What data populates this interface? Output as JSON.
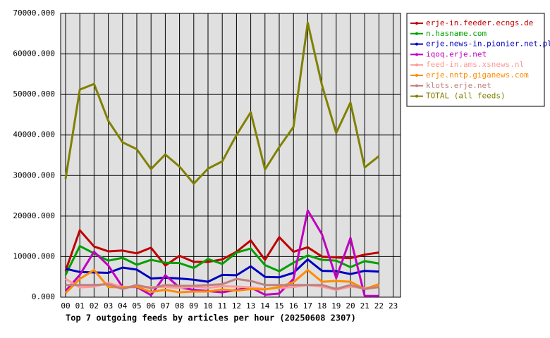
{
  "chart_data": {
    "type": "line",
    "title": "Top 7 outgoing feeds by articles per hour (20250608 2307)",
    "categories": [
      "00",
      "01",
      "02",
      "03",
      "04",
      "05",
      "06",
      "07",
      "08",
      "09",
      "10",
      "11",
      "12",
      "13",
      "14",
      "15",
      "16",
      "17",
      "18",
      "19",
      "20",
      "21",
      "22",
      "23"
    ],
    "ylim": [
      0,
      70000
    ],
    "yticks": [
      {
        "value": 0,
        "label": "0.000"
      },
      {
        "value": 10000,
        "label": "10000.000"
      },
      {
        "value": 20000,
        "label": "20000.000"
      },
      {
        "value": 30000,
        "label": "30000.000"
      },
      {
        "value": 40000,
        "label": "40000.000"
      },
      {
        "value": 50000,
        "label": "50000.000"
      },
      {
        "value": 60000,
        "label": "60000.000"
      },
      {
        "value": 70000,
        "label": "70000.000"
      }
    ],
    "grid": true,
    "legend": "right",
    "series": [
      {
        "name": "erje-in.feeder.ecngs.de",
        "color": "#c00000",
        "values": [
          6500,
          16500,
          12500,
          11300,
          11500,
          10800,
          12200,
          7800,
          10200,
          8700,
          8700,
          9300,
          11200,
          14000,
          9200,
          14800,
          11200,
          12300,
          10000,
          9800,
          9600,
          10500,
          11000,
          null
        ]
      },
      {
        "name": "n.hasname.com",
        "color": "#00a000",
        "values": [
          5500,
          12600,
          10800,
          9000,
          9700,
          8000,
          9200,
          8500,
          8400,
          7200,
          9400,
          8200,
          11000,
          12000,
          7900,
          6400,
          8500,
          10300,
          9200,
          9000,
          7400,
          8900,
          8300,
          null
        ]
      },
      {
        "name": "erje.news-in.pionier.net.pl",
        "color": "#0000c0",
        "values": [
          7000,
          6200,
          6100,
          6000,
          7300,
          6800,
          4600,
          4800,
          4600,
          4300,
          3800,
          5500,
          5400,
          7600,
          5000,
          4900,
          6000,
          9300,
          6500,
          6400,
          5700,
          6500,
          6300,
          null
        ]
      },
      {
        "name": "iqoq.erje.net",
        "color": "#c000c0",
        "values": [
          1500,
          5500,
          11200,
          7800,
          2500,
          2500,
          500,
          5400,
          2400,
          1800,
          1500,
          1200,
          1800,
          2400,
          600,
          900,
          4500,
          21400,
          15500,
          4700,
          14600,
          300,
          300,
          null
        ]
      },
      {
        "name": "feed-in.ams.xsnews.nl",
        "color": "#ff9999",
        "values": [
          4500,
          2400,
          2600,
          3500,
          2500,
          2600,
          2500,
          2500,
          2300,
          2600,
          2300,
          2700,
          2600,
          2400,
          2000,
          2300,
          2500,
          3000,
          2600,
          1800,
          2600,
          2200,
          2900,
          null
        ]
      },
      {
        "name": "erje.nntp.giganews.com",
        "color": "#ff8c00",
        "values": [
          1000,
          4500,
          6700,
          2500,
          2400,
          2600,
          1300,
          1800,
          1200,
          1400,
          1400,
          1900,
          1600,
          2000,
          1900,
          2500,
          3700,
          6700,
          3800,
          4000,
          3800,
          2000,
          3200,
          null
        ]
      },
      {
        "name": "klots.erje.net",
        "color": "#c08080",
        "values": [
          3000,
          3000,
          3000,
          3200,
          2000,
          3000,
          2200,
          3000,
          2800,
          2800,
          3000,
          3200,
          4500,
          4000,
          3000,
          3000,
          3000,
          3000,
          3000,
          2000,
          3000,
          2000,
          2500,
          null
        ]
      },
      {
        "name": "TOTAL (all feeds)",
        "color": "#808000",
        "values": [
          29200,
          51200,
          52600,
          43500,
          38200,
          36500,
          31600,
          35200,
          32200,
          28000,
          31700,
          33500,
          40000,
          45600,
          31500,
          37000,
          42000,
          67700,
          52300,
          40500,
          48000,
          32000,
          34800,
          null
        ]
      }
    ]
  }
}
